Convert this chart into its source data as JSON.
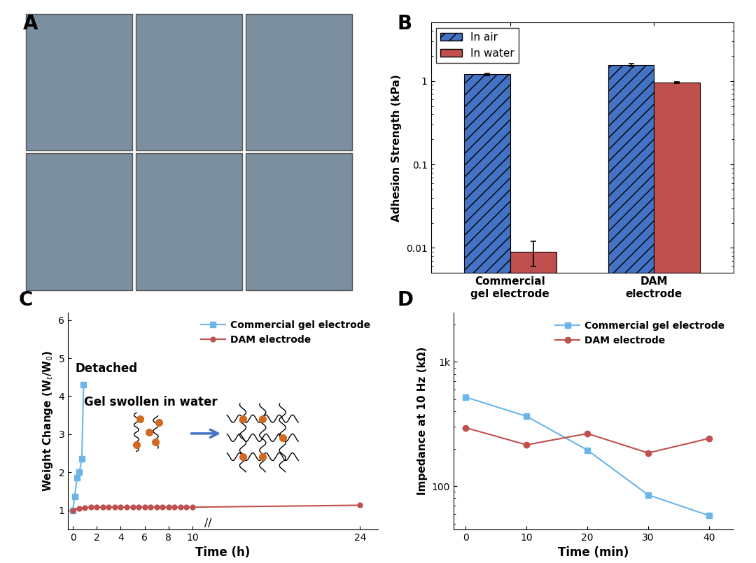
{
  "panel_B": {
    "ylabel": "Adhesion Strength (kPa)",
    "ylim_log": [
      0.005,
      5
    ],
    "yticks": [
      0.01,
      0.1,
      1
    ],
    "yticklabels": [
      "0.01",
      "0.1",
      "1"
    ],
    "categories": [
      "Commercial\ngel electrode",
      "DAM\nelectrode"
    ],
    "in_air": [
      1.2,
      1.55
    ],
    "in_water": [
      0.009,
      0.95
    ],
    "in_air_err": [
      0.04,
      0.06
    ],
    "in_water_err": [
      0.003,
      0.02
    ],
    "color_air": "#4472C4",
    "color_water": "#C0504D"
  },
  "panel_C": {
    "xlabel": "Time (h)",
    "ylabel": "Weight Change (W_t/W_0)",
    "ylim": [
      0.5,
      6.2
    ],
    "yticks": [
      1,
      2,
      3,
      4,
      5,
      6
    ],
    "xticks": [
      0,
      2,
      4,
      6,
      8,
      10,
      24
    ],
    "xticklabels": [
      "0",
      "2",
      "4",
      "6",
      "8",
      "10",
      "24"
    ],
    "commercial_x": [
      0,
      0.15,
      0.35,
      0.55,
      0.75,
      0.9,
      1.05
    ],
    "commercial_y": [
      1.0,
      1.35,
      1.85,
      2.0,
      2.35,
      4.3,
      null
    ],
    "dam_x": [
      0,
      0.5,
      1,
      1.5,
      2,
      2.5,
      3,
      3.5,
      4,
      4.5,
      5,
      5.5,
      6,
      6.5,
      7,
      7.5,
      8,
      8.5,
      9,
      9.5,
      10,
      24
    ],
    "dam_y": [
      1.0,
      1.05,
      1.07,
      1.08,
      1.08,
      1.08,
      1.08,
      1.08,
      1.08,
      1.08,
      1.08,
      1.08,
      1.08,
      1.08,
      1.08,
      1.08,
      1.08,
      1.08,
      1.08,
      1.08,
      1.08,
      1.13
    ],
    "color_commercial": "#6BB5E8",
    "color_dam": "#C0504D",
    "detach_label": "Detached",
    "gel_label": "Gel swollen in water"
  },
  "panel_D": {
    "xlabel": "Time (min)",
    "ylabel": "Impedance at 10 Hz (kΩ)",
    "xticks": [
      0,
      10,
      20,
      30,
      40
    ],
    "ylim_log": [
      45,
      2500
    ],
    "yticks_log": [
      100,
      1000
    ],
    "yticklabels_log": [
      "100",
      "1k"
    ],
    "commercial_x": [
      0,
      10,
      20,
      30,
      40
    ],
    "commercial_y": [
      520,
      365,
      195,
      85,
      58
    ],
    "dam_x": [
      0,
      10,
      20,
      30,
      40
    ],
    "dam_y": [
      295,
      215,
      265,
      185,
      242
    ],
    "color_commercial": "#6BB5E8",
    "color_dam": "#C0504D"
  },
  "bg_color": "#FFFFFF"
}
